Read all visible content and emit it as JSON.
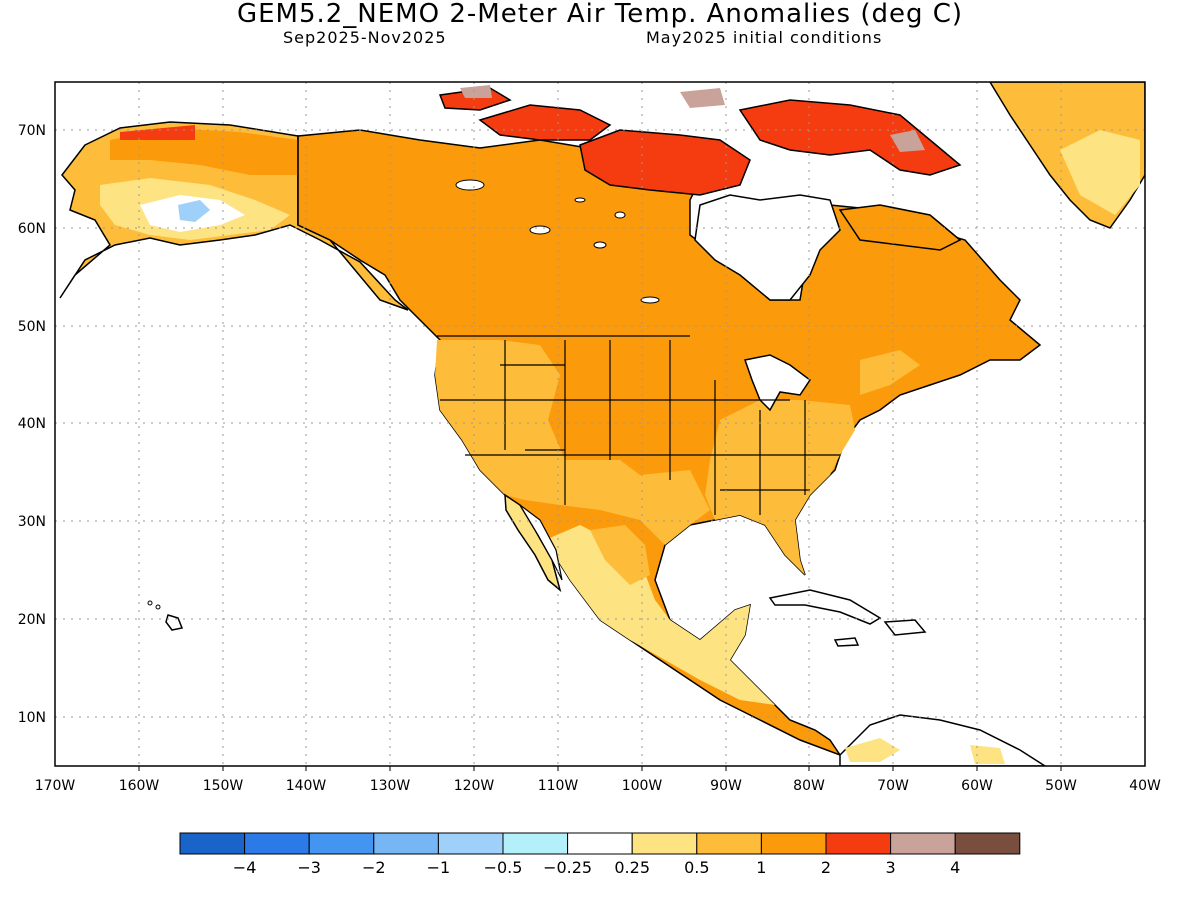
{
  "title": "GEM5.2_NEMO 2-Meter Air Temp. Anomalies (deg C)",
  "subtitle_left": "Sep2025-Nov2025",
  "subtitle_right": "May2025 initial conditions",
  "lon_labels": [
    "170W",
    "160W",
    "150W",
    "140W",
    "130W",
    "120W",
    "110W",
    "100W",
    "90W",
    "80W",
    "70W",
    "60W",
    "50W",
    "40W"
  ],
  "lat_labels": [
    "70N",
    "60N",
    "50N",
    "40N",
    "30N",
    "20N",
    "10N"
  ],
  "colorbar": {
    "labels": [
      "-4",
      "-3",
      "-2",
      "-1",
      "-0.5",
      "-0.25",
      "0.25",
      "0.5",
      "1",
      "2",
      "3",
      "4"
    ],
    "colors": [
      "#1a63c9",
      "#2b7ae8",
      "#4495f0",
      "#77b6f5",
      "#9fd0fa",
      "#b4f0fa",
      "#ffffff",
      "#fde382",
      "#fdbd3a",
      "#fb9a0a",
      "#f53c11",
      "#c9a39a",
      "#7a4e3f"
    ]
  },
  "map_colors": {
    "ocean": "#ffffff",
    "coast": "#000000",
    "anom_025_05": "#fde382",
    "anom_05_1": "#fdbd3a",
    "anom_1_2": "#fb9a0a",
    "anom_2_3": "#f53c11",
    "anom_3_4": "#c9a39a",
    "anom_neg": "#b4f0fa"
  }
}
